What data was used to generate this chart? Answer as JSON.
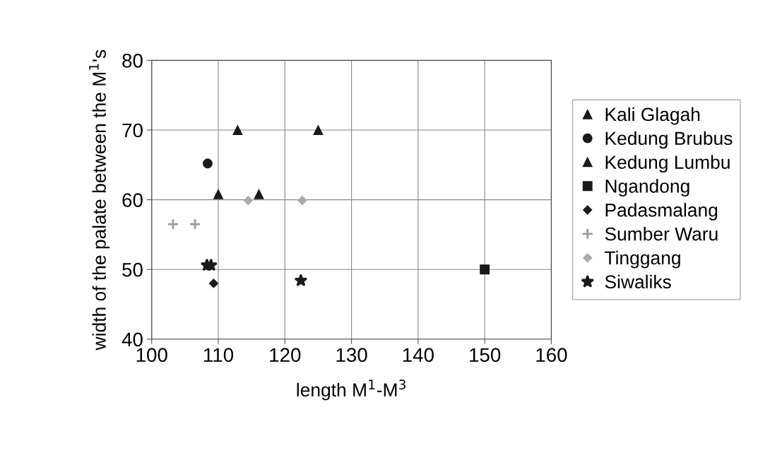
{
  "chart_data": {
    "type": "scatter",
    "xlabel": "length M$^{1}$-M$^{3}$",
    "ylabel": "width of the palate between the M$^{1}$'s",
    "xlim": [
      100,
      160
    ],
    "xticks": [
      100,
      110,
      120,
      130,
      140,
      150,
      160
    ],
    "ylim": [
      40,
      80
    ],
    "yticks": [
      40,
      50,
      60,
      70,
      80
    ],
    "grid": true,
    "legend": "right",
    "series": [
      {
        "name": "Kali Glagah",
        "color": "#1a1a1a",
        "marker": "triangle",
        "x": [
          112.9,
          125.0
        ],
        "values": [
          70,
          70
        ]
      },
      {
        "name": "Kedung Brubus",
        "color": "#1a1a1a",
        "marker": "circle",
        "x": [
          108.4
        ],
        "values": [
          65.2
        ]
      },
      {
        "name": "Kedung Lumbu",
        "color": "#1a1a1a",
        "marker": "triangle",
        "x": [
          110.0,
          116.1
        ],
        "values": [
          60.8,
          60.8
        ]
      },
      {
        "name": "Ngandong",
        "color": "#1a1a1a",
        "marker": "square",
        "x": [
          150.0
        ],
        "values": [
          50.0
        ]
      },
      {
        "name": "Padasmalang",
        "color": "#1a1a1a",
        "marker": "diamond",
        "x": [
          109.3
        ],
        "values": [
          48.0
        ]
      },
      {
        "name": "Sumber Waru",
        "color": "#9a9a9a",
        "marker": "cross",
        "x": [
          103.2,
          106.5
        ],
        "values": [
          56.5,
          56.5
        ]
      },
      {
        "name": "Tinggang",
        "color": "#aaaaaa",
        "marker": "diamond",
        "x": [
          114.5,
          122.6
        ],
        "values": [
          59.9,
          59.9
        ]
      },
      {
        "name": "Siwaliks",
        "color": "#1a1a1a",
        "marker": "star",
        "x": [
          108.3,
          108.9,
          122.4
        ],
        "values": [
          50.6,
          50.6,
          48.4
        ]
      }
    ]
  }
}
